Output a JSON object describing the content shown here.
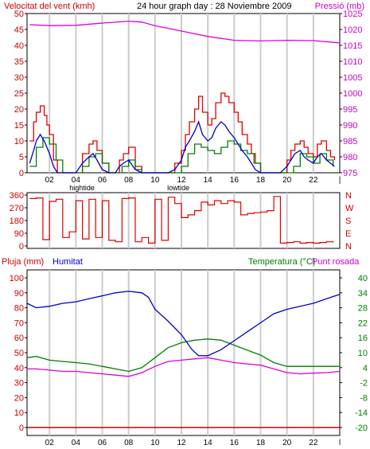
{
  "chart_data": [
    {
      "type": "line",
      "title": "24 hour graph day : 28 Noviembre 2009",
      "ylabel": "Velocitat del vent (kmh)",
      "y2label": "Pressió (mb)",
      "ylim": [
        0,
        50
      ],
      "y2lim": [
        975,
        1025
      ],
      "y_ticks": [
        0,
        5,
        10,
        15,
        20,
        25,
        30,
        35,
        40,
        45,
        50
      ],
      "y2_ticks": [
        975,
        980,
        985,
        990,
        995,
        1000,
        1005,
        1010,
        1015,
        1020,
        1025
      ],
      "x_ticks": [
        "02",
        "04",
        "06",
        "08",
        "10",
        "12",
        "14",
        "16",
        "18",
        "20",
        "22",
        "|"
      ],
      "x_hours": [
        2,
        4,
        6,
        8,
        10,
        12,
        14,
        16,
        18,
        20,
        22,
        24
      ],
      "xlim": [
        0.3,
        24
      ],
      "tide_labels": [
        {
          "label": "hightide",
          "x": 3.5
        },
        {
          "label": "lowtide",
          "x": 10.8
        }
      ],
      "grid": "vertical",
      "colors": {
        "gust": "#e00000",
        "speed": "#0000cc",
        "average": "#008000",
        "pressure": "#dd00dd",
        "axis_left": "#cc0000",
        "axis_right": "#cc00cc"
      },
      "series": [
        {
          "name": "gust",
          "x": [
            0.5,
            0.8,
            1.0,
            1.3,
            1.6,
            1.8,
            2.0,
            2.3,
            2.6,
            3.0,
            4.0,
            4.5,
            5.0,
            5.3,
            5.6,
            6.0,
            6.5,
            7.0,
            7.3,
            7.6,
            8.0,
            8.5,
            9.0,
            9.5,
            10.0,
            10.5,
            11.0,
            11.5,
            12.0,
            12.3,
            12.6,
            13.0,
            13.3,
            13.6,
            14.0,
            14.3,
            14.6,
            15.0,
            15.3,
            15.6,
            16.0,
            16.3,
            16.6,
            17.0,
            17.3,
            17.6,
            18.0,
            18.5,
            19.0,
            19.5,
            20.0,
            20.3,
            20.6,
            21.0,
            21.3,
            21.6,
            22.0,
            22.3,
            22.6,
            23.0,
            23.3,
            23.6
          ],
          "values": [
            10,
            16,
            19,
            21,
            18,
            15,
            12,
            4,
            0,
            0,
            0,
            6,
            9,
            10,
            7,
            3,
            0,
            0,
            4,
            6,
            8,
            2,
            0,
            0,
            0,
            0,
            0,
            3,
            7,
            12,
            16,
            20,
            24,
            19,
            15,
            17,
            22,
            25,
            24,
            22,
            19,
            16,
            12,
            9,
            6,
            3,
            0,
            0,
            0,
            0,
            4,
            7,
            9,
            10,
            8,
            6,
            5,
            9,
            10,
            7,
            5,
            4
          ]
        },
        {
          "name": "speed",
          "x": [
            0.5,
            0.8,
            1.0,
            1.3,
            1.6,
            1.8,
            2.0,
            2.3,
            2.6,
            3.0,
            4.0,
            4.5,
            5.0,
            5.3,
            5.6,
            6.0,
            6.5,
            7.0,
            7.3,
            7.6,
            8.0,
            8.5,
            9.0,
            9.5,
            10.0,
            10.5,
            11.0,
            11.5,
            12.0,
            12.3,
            12.6,
            13.0,
            13.3,
            13.6,
            14.0,
            14.3,
            14.6,
            15.0,
            15.3,
            15.6,
            16.0,
            16.3,
            16.6,
            17.0,
            17.3,
            17.6,
            18.0,
            18.5,
            19.0,
            19.5,
            20.0,
            20.3,
            20.6,
            21.0,
            21.3,
            21.6,
            22.0,
            22.3,
            22.6,
            23.0,
            23.3,
            23.6
          ],
          "values": [
            3,
            7,
            10,
            12,
            10,
            8,
            6,
            2,
            0,
            0,
            0,
            3,
            5,
            6,
            4,
            1,
            0,
            0,
            2,
            3,
            4,
            1,
            0,
            0,
            0,
            0,
            0,
            1,
            4,
            8,
            10,
            13,
            16,
            12,
            10,
            11,
            14,
            16,
            15,
            13,
            11,
            9,
            7,
            5,
            3,
            1,
            0,
            0,
            0,
            0,
            2,
            4,
            6,
            7,
            5,
            4,
            3,
            5,
            6,
            4,
            3,
            2
          ]
        },
        {
          "name": "average",
          "x": [
            0.5,
            1.0,
            1.5,
            2.0,
            2.5,
            3.0,
            4.0,
            4.5,
            5.0,
            5.5,
            6.0,
            6.5,
            7.0,
            7.5,
            8.0,
            8.5,
            9.0,
            10.0,
            11.0,
            11.5,
            12.0,
            12.5,
            13.0,
            13.5,
            14.0,
            14.5,
            15.0,
            15.5,
            16.0,
            16.5,
            17.0,
            17.5,
            18.0,
            19.0,
            20.0,
            20.5,
            21.0,
            21.5,
            22.0,
            22.5,
            23.0,
            23.5
          ],
          "values": [
            2,
            8,
            11,
            9,
            4,
            0,
            0,
            2,
            5,
            6,
            3,
            0,
            0,
            2,
            4,
            1,
            0,
            0,
            0,
            0,
            2,
            6,
            9,
            8,
            7,
            6,
            8,
            10,
            9,
            7,
            6,
            3,
            0,
            0,
            0,
            2,
            6,
            5,
            3,
            6,
            4,
            2
          ]
        },
        {
          "name": "pressure",
          "x": [
            0.5,
            2,
            4,
            6,
            8,
            9,
            10,
            12,
            14,
            16,
            18,
            20,
            22,
            24
          ],
          "values": [
            1021.5,
            1021.2,
            1021.3,
            1022,
            1022.6,
            1022.3,
            1021.2,
            1019.5,
            1017.8,
            1016.6,
            1016.4,
            1016.6,
            1016.5,
            1015.8
          ]
        }
      ]
    },
    {
      "type": "scatter",
      "ylabel_ticks": [
        "360",
        "270",
        "180",
        "90",
        "0"
      ],
      "ylim": [
        0,
        360
      ],
      "y2_labels": [
        "N",
        "W",
        "S",
        "E",
        "N"
      ],
      "color": "#e00000",
      "series": [
        {
          "name": "direction",
          "x": [
            0.5,
            1.0,
            1.5,
            2.0,
            2.5,
            3.0,
            3.5,
            4.0,
            4.5,
            5.0,
            5.5,
            6.0,
            6.5,
            7.0,
            7.5,
            8.0,
            8.5,
            9.0,
            9.5,
            10.0,
            10.5,
            11.0,
            11.5,
            12.0,
            12.5,
            13.0,
            13.5,
            14.0,
            14.5,
            15.0,
            15.5,
            16.0,
            16.5,
            17.0,
            17.5,
            18.0,
            18.5,
            19.0,
            19.5,
            20.0,
            20.5,
            21.0,
            21.5,
            22.0,
            22.5,
            23.0,
            23.5
          ],
          "values": [
            335,
            340,
            45,
            315,
            330,
            60,
            100,
            320,
            50,
            330,
            60,
            320,
            40,
            30,
            335,
            340,
            30,
            60,
            20,
            330,
            40,
            345,
            300,
            200,
            220,
            250,
            310,
            290,
            320,
            300,
            320,
            310,
            220,
            230,
            235,
            240,
            250,
            350,
            20,
            25,
            30,
            20,
            25,
            20,
            25,
            30,
            25
          ]
        }
      ]
    },
    {
      "type": "line",
      "ylabel": "Pluja (mm)",
      "ylabel2": "Humitat",
      "y2label": "Temperatura (°C)",
      "y2label_b": "Punt rosada",
      "ylim": [
        0,
        100
      ],
      "y2lim": [
        -20,
        40
      ],
      "y_ticks": [
        0,
        10,
        20,
        30,
        40,
        50,
        60,
        70,
        80,
        90,
        100
      ],
      "y2_ticks": [
        -20,
        -14,
        -8,
        -2,
        4,
        10,
        16,
        22,
        28,
        34,
        40
      ],
      "x_ticks": [
        "02",
        "04",
        "06",
        "08",
        "10",
        "12",
        "14",
        "16",
        "18",
        "20",
        "22",
        "|"
      ],
      "tide_labels": [
        {
          "label": "hightide",
          "x": 3.5
        },
        {
          "label": "lowtide",
          "x": 10.8
        }
      ],
      "colors": {
        "humidity": "#0000cc",
        "temperature": "#008000",
        "dewpoint": "#dd00dd",
        "rain": "#cc0000",
        "axis_left": "#cc0000",
        "axis_right": "#008000"
      },
      "series": [
        {
          "name": "humidity",
          "x": [
            0.3,
            1.0,
            2.0,
            3.0,
            4.0,
            5.0,
            6.0,
            7.0,
            8.0,
            9.0,
            9.5,
            10.0,
            11.0,
            12.0,
            12.8,
            13.3,
            14.0,
            15.0,
            16.0,
            17.0,
            18.0,
            19.0,
            20.0,
            21.0,
            22.0,
            23.0,
            24.0
          ],
          "values": [
            83,
            80,
            81,
            83,
            84,
            86,
            88,
            90,
            91,
            90,
            87,
            79,
            71,
            62,
            52,
            48,
            48,
            52,
            58,
            64,
            70,
            76,
            79,
            81,
            83,
            86,
            89
          ]
        },
        {
          "name": "temperature",
          "x": [
            0.3,
            1.0,
            2.0,
            3.0,
            4.0,
            5.0,
            6.0,
            7.0,
            8.0,
            9.0,
            10.0,
            11.0,
            12.0,
            13.0,
            14.0,
            15.0,
            16.0,
            17.0,
            18.0,
            19.0,
            20.0,
            21.0,
            22.0,
            23.0,
            24.0
          ],
          "values": [
            8,
            8.5,
            7,
            6.5,
            6,
            5.5,
            4.5,
            3.5,
            2.5,
            4,
            8,
            12,
            14,
            15,
            15.5,
            15,
            13,
            11,
            9,
            6,
            4.5,
            4.5,
            4.5,
            4.5,
            4.5
          ]
        },
        {
          "name": "dewpoint",
          "x": [
            0.3,
            1.0,
            2.0,
            3.0,
            4.0,
            5.0,
            6.0,
            7.0,
            8.0,
            9.0,
            10.0,
            11.0,
            12.0,
            13.0,
            14.0,
            15.0,
            16.0,
            17.0,
            18.0,
            19.0,
            20.0,
            21.0,
            22.0,
            23.0,
            24.0
          ],
          "values": [
            3.5,
            3.5,
            3,
            2.5,
            2.5,
            2,
            1.5,
            1,
            0.5,
            2,
            4.5,
            6.5,
            7,
            7.5,
            8,
            7,
            6,
            5.5,
            5,
            3.5,
            2,
            1.5,
            1.8,
            2,
            2.5
          ]
        },
        {
          "name": "rain",
          "x": [
            0.3,
            24
          ],
          "values": [
            0,
            0
          ]
        }
      ]
    }
  ]
}
